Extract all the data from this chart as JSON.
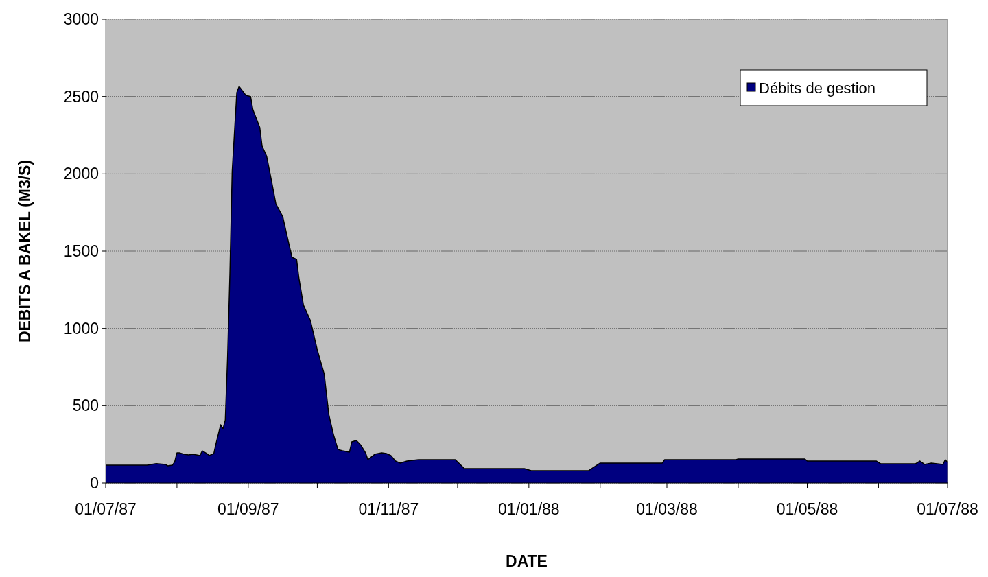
{
  "chart_data": {
    "type": "area",
    "xlabel": "DATE",
    "ylabel": "DEBITS A BAKEL (M3/S)",
    "xlim": [
      "1987-07-01",
      "1988-07-01"
    ],
    "xticks": [
      {
        "value": "1987-07-01",
        "label": "01/07/87"
      },
      {
        "value": "1987-08-01",
        "label": null
      },
      {
        "value": "1987-09-01",
        "label": "01/09/87"
      },
      {
        "value": "1987-10-01",
        "label": null
      },
      {
        "value": "1987-11-01",
        "label": "01/11/87"
      },
      {
        "value": "1987-12-01",
        "label": null
      },
      {
        "value": "1988-01-01",
        "label": "01/01/88"
      },
      {
        "value": "1988-02-01",
        "label": null
      },
      {
        "value": "1988-03-01",
        "label": "01/03/88"
      },
      {
        "value": "1988-04-01",
        "label": null
      },
      {
        "value": "1988-05-01",
        "label": "01/05/88"
      },
      {
        "value": "1988-06-01",
        "label": null
      },
      {
        "value": "1988-07-01",
        "label": "01/07/88"
      }
    ],
    "ylim": [
      0,
      3000
    ],
    "yticks": [
      0,
      500,
      1000,
      1500,
      2000,
      2500,
      3000
    ],
    "grid": "y",
    "legend": "top right",
    "x": [
      "1987-07-01",
      "1987-07-19",
      "1987-07-23",
      "1987-07-27",
      "1987-07-28",
      "1987-07-30",
      "1987-07-31",
      "1987-08-01",
      "1987-08-02",
      "1987-08-04",
      "1987-08-06",
      "1987-08-08",
      "1987-08-11",
      "1987-08-12",
      "1987-08-14",
      "1987-08-15",
      "1987-08-17",
      "1987-08-18",
      "1987-08-20",
      "1987-08-21",
      "1987-08-22",
      "1987-08-23",
      "1987-08-24",
      "1987-08-25",
      "1987-08-27",
      "1987-08-28",
      "1987-08-31",
      "1987-09-02",
      "1987-09-03",
      "1987-09-06",
      "1987-09-07",
      "1987-09-09",
      "1987-09-11",
      "1987-09-13",
      "1987-09-16",
      "1987-09-18",
      "1987-09-20",
      "1987-09-22",
      "1987-09-23",
      "1987-09-25",
      "1987-09-28",
      "1987-10-01",
      "1987-10-04",
      "1987-10-06",
      "1987-10-08",
      "1987-10-10",
      "1987-10-12",
      "1987-10-15",
      "1987-10-16",
      "1987-10-18",
      "1987-10-20",
      "1987-10-22",
      "1987-10-23",
      "1987-10-26",
      "1987-10-29",
      "1987-10-31",
      "1987-11-02",
      "1987-11-04",
      "1987-11-06",
      "1987-11-09",
      "1987-11-14",
      "1987-11-30",
      "1987-12-04",
      "1987-12-30",
      "1988-01-02",
      "1988-01-27",
      "1988-02-01",
      "1988-02-28",
      "1988-02-29",
      "1988-03-31",
      "1988-04-01",
      "1988-04-30",
      "1988-05-01",
      "1988-05-31",
      "1988-06-02",
      "1988-06-17",
      "1988-06-19",
      "1988-06-21",
      "1988-06-24",
      "1988-06-29",
      "1988-06-30",
      "1988-07-01"
    ],
    "series": [
      {
        "name": "Débits de gestion",
        "color": "#000080",
        "values": [
          115,
          115,
          125,
          120,
          111,
          115,
          137,
          195,
          195,
          186,
          182,
          186,
          178,
          208,
          190,
          178,
          190,
          257,
          377,
          350,
          408,
          816,
          1350,
          2015,
          2525,
          2565,
          2507,
          2500,
          2415,
          2300,
          2180,
          2113,
          1962,
          1806,
          1722,
          1589,
          1460,
          1447,
          1327,
          1150,
          1052,
          861,
          706,
          444,
          315,
          217,
          209,
          200,
          266,
          275,
          244,
          195,
          151,
          186,
          195,
          191,
          178,
          142,
          129,
          142,
          151,
          151,
          93,
          93,
          80,
          80,
          129,
          129,
          151,
          151,
          155,
          155,
          142,
          142,
          124,
          124,
          142,
          120,
          129,
          120,
          151,
          133
        ]
      }
    ]
  }
}
